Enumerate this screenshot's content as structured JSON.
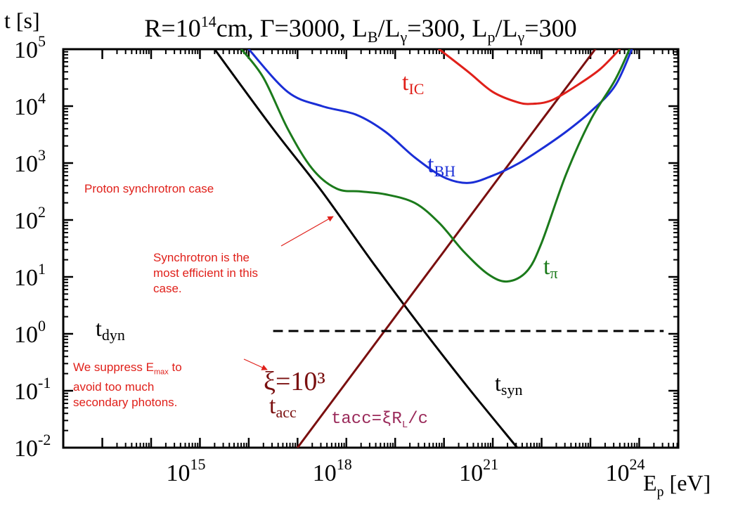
{
  "chart_data": {
    "type": "line",
    "title": "R=10¹⁴cm, Γ=3000, Lʙ/Lγ=300, Lₚ/Lγ=300",
    "xlabel": "Eₚ [eV]",
    "ylabel": "t [s]",
    "x_scale": "log",
    "y_scale": "log",
    "xlim_log10": [
      12.2,
      24.8
    ],
    "ylim_log10": [
      -2,
      5
    ],
    "x_ticks": [
      {
        "exp": 15,
        "label": "10",
        "sup": "15"
      },
      {
        "exp": 18,
        "label": "10",
        "sup": "18"
      },
      {
        "exp": 21,
        "label": "10",
        "sup": "21"
      },
      {
        "exp": 24,
        "label": "10",
        "sup": "24"
      }
    ],
    "y_ticks": [
      {
        "exp": 5,
        "label": "10",
        "sup": "5"
      },
      {
        "exp": 4,
        "label": "10",
        "sup": "4"
      },
      {
        "exp": 3,
        "label": "10",
        "sup": "3"
      },
      {
        "exp": 2,
        "label": "10",
        "sup": "2"
      },
      {
        "exp": 1,
        "label": "10",
        "sup": "1"
      },
      {
        "exp": 0,
        "label": "10",
        "sup": "0"
      },
      {
        "exp": -1,
        "label": "10",
        "sup": "-1"
      },
      {
        "exp": -2,
        "label": "10",
        "sup": "-2"
      }
    ],
    "grid": false,
    "series": [
      {
        "key": "syn",
        "label_main": "t",
        "label_sub": "syn",
        "color": "#000000",
        "dash": false,
        "log10_points": [
          [
            15.3,
            5.0
          ],
          [
            16.5,
            3.6
          ],
          [
            17.5,
            2.5
          ],
          [
            18.5,
            1.3
          ],
          [
            19.5,
            0.15
          ],
          [
            20.5,
            -0.95
          ],
          [
            21.5,
            -2.0
          ]
        ]
      },
      {
        "key": "acc",
        "label_main": "t",
        "label_sub": "acc",
        "color": "#7a0f0f",
        "dash": false,
        "log10_points": [
          [
            17.0,
            -2.0
          ],
          [
            18.0,
            -0.85
          ],
          [
            19.0,
            0.3
          ],
          [
            20.0,
            1.45
          ],
          [
            21.0,
            2.6
          ],
          [
            22.0,
            3.75
          ],
          [
            23.1,
            5.0
          ]
        ]
      },
      {
        "key": "IC",
        "label_main": "t",
        "label_sub": "IC",
        "color": "#e0201a",
        "dash": false,
        "log10_points": [
          [
            19.9,
            5.0
          ],
          [
            20.5,
            4.6
          ],
          [
            21.0,
            4.25
          ],
          [
            21.5,
            4.07
          ],
          [
            21.8,
            4.04
          ],
          [
            22.2,
            4.1
          ],
          [
            22.7,
            4.35
          ],
          [
            23.2,
            4.65
          ],
          [
            23.6,
            5.0
          ]
        ]
      },
      {
        "key": "BH",
        "label_main": "t",
        "label_sub": "BH",
        "color": "#1a2ed6",
        "dash": false,
        "log10_points": [
          [
            16.0,
            5.0
          ],
          [
            16.8,
            4.25
          ],
          [
            17.5,
            4.0
          ],
          [
            18.2,
            3.85
          ],
          [
            18.8,
            3.55
          ],
          [
            19.4,
            3.1
          ],
          [
            20.0,
            2.75
          ],
          [
            20.5,
            2.65
          ],
          [
            21.0,
            2.78
          ],
          [
            21.5,
            2.98
          ],
          [
            22.0,
            3.25
          ],
          [
            22.5,
            3.55
          ],
          [
            23.0,
            3.9
          ],
          [
            23.5,
            4.35
          ],
          [
            23.85,
            5.0
          ]
        ]
      },
      {
        "key": "pi",
        "label_main": "t",
        "label_sub": "π",
        "color": "#1b7a1b",
        "dash": false,
        "log10_points": [
          [
            15.85,
            5.0
          ],
          [
            16.3,
            4.5
          ],
          [
            16.8,
            3.6
          ],
          [
            17.3,
            2.9
          ],
          [
            17.8,
            2.55
          ],
          [
            18.3,
            2.5
          ],
          [
            18.8,
            2.45
          ],
          [
            19.4,
            2.3
          ],
          [
            19.9,
            1.95
          ],
          [
            20.4,
            1.45
          ],
          [
            20.9,
            1.05
          ],
          [
            21.3,
            0.92
          ],
          [
            21.7,
            1.1
          ],
          [
            22.0,
            1.6
          ],
          [
            22.5,
            2.8
          ],
          [
            23.0,
            3.75
          ],
          [
            23.5,
            4.45
          ],
          [
            23.8,
            5.0
          ]
        ]
      },
      {
        "key": "dyn",
        "label_main": "t",
        "label_sub": "dyn",
        "color": "#000000",
        "dash": true,
        "log10_points": [
          [
            16.5,
            0.05
          ],
          [
            24.5,
            0.05
          ]
        ]
      }
    ],
    "annotations": {
      "xi": "ξ=10³",
      "formula_main": "tacc=ξR",
      "formula_sub": "L",
      "formula_tail": "/c"
    }
  },
  "notes": {
    "case": "Proton synchrotron case",
    "sync": [
      "Synchrotron is the",
      "most efficient in this",
      "case."
    ],
    "suppress_pre": "We suppress E",
    "suppress_sub": "max",
    "suppress_post": " to",
    "suppress_lines": [
      "avoid too much",
      "secondary photons."
    ]
  }
}
